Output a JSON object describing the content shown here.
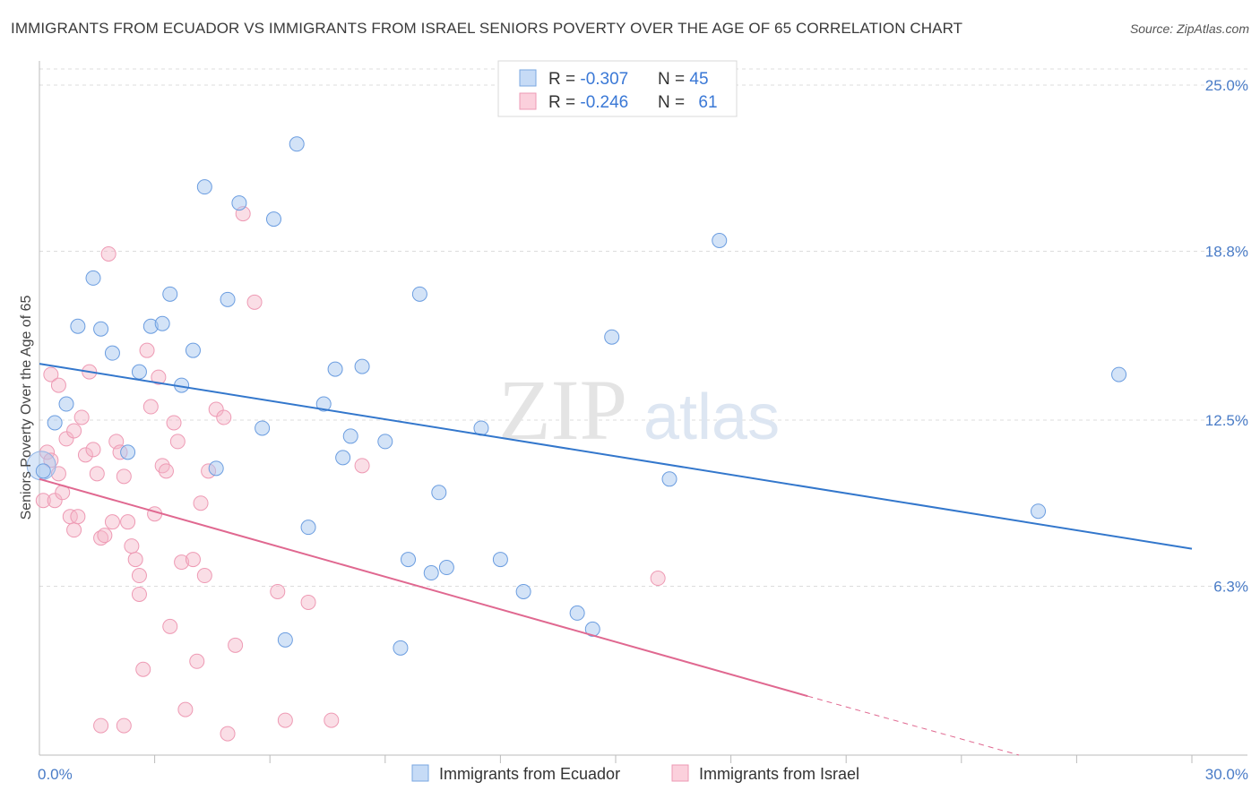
{
  "title": "IMMIGRANTS FROM ECUADOR VS IMMIGRANTS FROM ISRAEL SENIORS POVERTY OVER THE AGE OF 65 CORRELATION CHART",
  "source": "Source: ZipAtlas.com",
  "watermark": {
    "zip": "ZIP",
    "atlas": "atlas"
  },
  "colors": {
    "ecuador": "#a8c8f0",
    "ecuador_line": "#3377cc",
    "israel": "#f4b6c8",
    "israel_line": "#e06890",
    "axis_text": "#4a7cc7"
  },
  "chart_data": {
    "type": "scatter",
    "xlabel": "",
    "ylabel": "Seniors Poverty Over the Age of 65",
    "xlim": [
      0,
      30
    ],
    "ylim": [
      0,
      25.6
    ],
    "x_tick_labels": [
      "0.0%",
      "30.0%"
    ],
    "y_ticks": [
      6.3,
      12.5,
      18.8,
      25.0
    ],
    "y_tick_labels": [
      "6.3%",
      "12.5%",
      "18.8%",
      "25.0%"
    ],
    "legend": [
      {
        "name": "Immigrants from Ecuador",
        "r_label": "R = ",
        "r": "-0.307",
        "n_label": "N = ",
        "n": "45"
      },
      {
        "name": "Immigrants from Israel",
        "r_label": "R = ",
        "r": "-0.246",
        "n_label": "N = ",
        "n": "61"
      }
    ],
    "series": [
      {
        "name": "Immigrants from Ecuador",
        "trend": {
          "x1": 0,
          "y1": 14.6,
          "x2": 30,
          "y2": 7.7
        },
        "points": [
          [
            0.1,
            10.6
          ],
          [
            0.4,
            12.4
          ],
          [
            0.7,
            13.1
          ],
          [
            1.0,
            16.0
          ],
          [
            1.4,
            17.8
          ],
          [
            1.6,
            15.9
          ],
          [
            1.9,
            15.0
          ],
          [
            2.3,
            11.3
          ],
          [
            2.6,
            14.3
          ],
          [
            2.9,
            16.0
          ],
          [
            3.2,
            16.1
          ],
          [
            3.4,
            17.2
          ],
          [
            3.7,
            13.8
          ],
          [
            4.0,
            15.1
          ],
          [
            4.3,
            21.2
          ],
          [
            4.6,
            10.7
          ],
          [
            4.9,
            17.0
          ],
          [
            5.2,
            20.6
          ],
          [
            5.8,
            12.2
          ],
          [
            6.1,
            20.0
          ],
          [
            6.4,
            4.3
          ],
          [
            6.7,
            22.8
          ],
          [
            7.0,
            8.5
          ],
          [
            7.4,
            13.1
          ],
          [
            7.7,
            14.4
          ],
          [
            7.9,
            11.1
          ],
          [
            8.1,
            11.9
          ],
          [
            8.4,
            14.5
          ],
          [
            9.0,
            11.7
          ],
          [
            9.4,
            4.0
          ],
          [
            9.6,
            7.3
          ],
          [
            9.9,
            17.2
          ],
          [
            10.2,
            6.8
          ],
          [
            10.4,
            9.8
          ],
          [
            10.6,
            7.0
          ],
          [
            11.5,
            12.2
          ],
          [
            12.0,
            7.3
          ],
          [
            12.6,
            6.1
          ],
          [
            14.0,
            5.3
          ],
          [
            14.4,
            4.7
          ],
          [
            14.9,
            15.6
          ],
          [
            16.4,
            10.3
          ],
          [
            17.7,
            19.2
          ],
          [
            26.0,
            9.1
          ],
          [
            28.1,
            14.2
          ]
        ],
        "large_point": [
          0.05,
          10.8
        ]
      },
      {
        "name": "Immigrants from Israel",
        "trend": {
          "x1": 0,
          "y1": 10.3,
          "x2": 20.0,
          "y2": 2.2,
          "dash_x2": 25.5,
          "dash_y2": 0
        },
        "points": [
          [
            0.1,
            9.5
          ],
          [
            0.2,
            11.3
          ],
          [
            0.3,
            14.2
          ],
          [
            0.3,
            11.0
          ],
          [
            0.4,
            9.5
          ],
          [
            0.5,
            13.8
          ],
          [
            0.5,
            10.5
          ],
          [
            0.6,
            9.8
          ],
          [
            0.7,
            11.8
          ],
          [
            0.8,
            8.9
          ],
          [
            0.9,
            12.1
          ],
          [
            0.9,
            8.4
          ],
          [
            1.0,
            8.9
          ],
          [
            1.1,
            12.6
          ],
          [
            1.2,
            11.2
          ],
          [
            1.3,
            14.3
          ],
          [
            1.4,
            11.4
          ],
          [
            1.5,
            10.5
          ],
          [
            1.6,
            8.1
          ],
          [
            1.7,
            8.2
          ],
          [
            1.8,
            18.7
          ],
          [
            1.9,
            8.7
          ],
          [
            2.0,
            11.7
          ],
          [
            2.1,
            11.3
          ],
          [
            2.2,
            10.4
          ],
          [
            2.3,
            8.7
          ],
          [
            2.4,
            7.8
          ],
          [
            2.5,
            7.3
          ],
          [
            2.6,
            6.7
          ],
          [
            2.6,
            6.0
          ],
          [
            2.7,
            3.2
          ],
          [
            2.8,
            15.1
          ],
          [
            2.9,
            13.0
          ],
          [
            3.0,
            9.0
          ],
          [
            3.1,
            14.1
          ],
          [
            3.2,
            10.8
          ],
          [
            3.3,
            10.6
          ],
          [
            3.4,
            4.8
          ],
          [
            3.5,
            12.4
          ],
          [
            3.6,
            11.7
          ],
          [
            3.7,
            7.2
          ],
          [
            3.8,
            1.7
          ],
          [
            4.0,
            7.3
          ],
          [
            4.1,
            3.5
          ],
          [
            4.2,
            9.4
          ],
          [
            4.3,
            6.7
          ],
          [
            4.4,
            10.6
          ],
          [
            4.6,
            12.9
          ],
          [
            4.8,
            12.6
          ],
          [
            4.9,
            0.8
          ],
          [
            5.1,
            4.1
          ],
          [
            5.3,
            20.2
          ],
          [
            5.6,
            16.9
          ],
          [
            6.2,
            6.1
          ],
          [
            6.4,
            1.3
          ],
          [
            7.0,
            5.7
          ],
          [
            7.6,
            1.3
          ],
          [
            8.4,
            10.8
          ],
          [
            16.1,
            6.6
          ],
          [
            1.6,
            1.1
          ],
          [
            2.2,
            1.1
          ]
        ]
      }
    ]
  }
}
